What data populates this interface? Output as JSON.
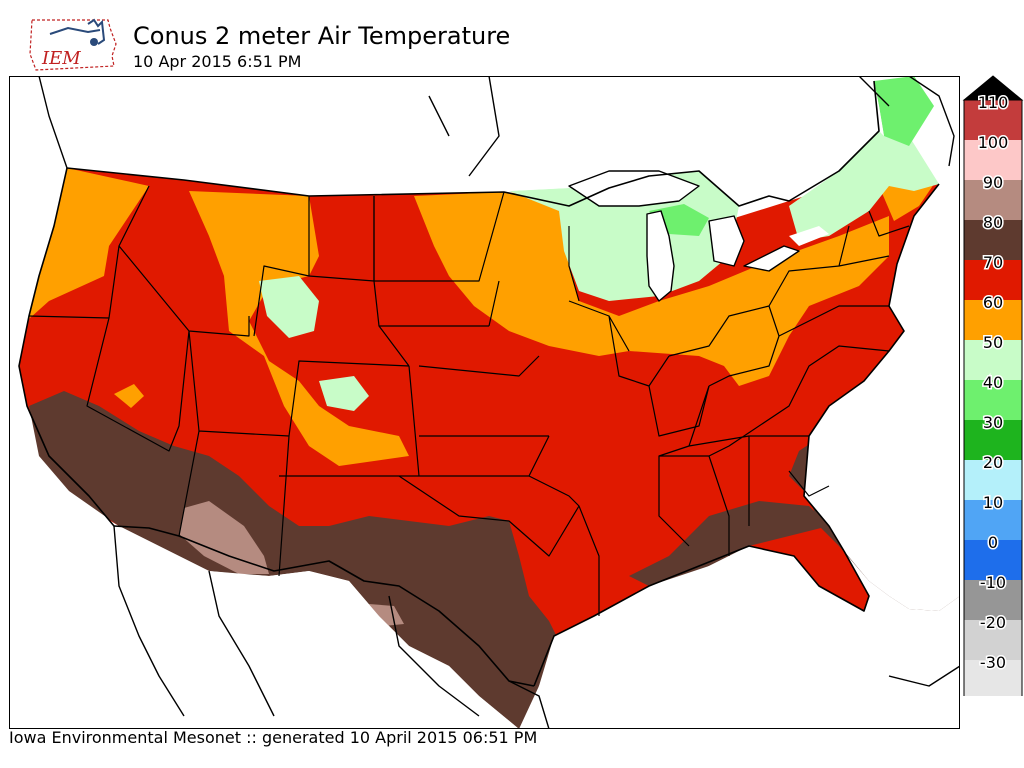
{
  "header": {
    "logo_text": "IEM",
    "title": "Conus 2 meter Air Temperature",
    "subtitle": "10 Apr 2015 6:51 PM"
  },
  "footer": {
    "credit": "Iowa Environmental Mesonet :: generated 10 April 2015 06:51 PM"
  },
  "legend": {
    "levels": [
      {
        "label": "110",
        "color": "#c33c3c"
      },
      {
        "label": "100",
        "color": "#fdc8c8"
      },
      {
        "label": "90",
        "color": "#b58b80"
      },
      {
        "label": "80",
        "color": "#5e3a2f"
      },
      {
        "label": "70",
        "color": "#e01900"
      },
      {
        "label": "60",
        "color": "#ffa000"
      },
      {
        "label": "50",
        "color": "#c8fcc8"
      },
      {
        "label": "40",
        "color": "#6ef06e"
      },
      {
        "label": "30",
        "color": "#1eb41e"
      },
      {
        "label": "20",
        "color": "#b4f0fa"
      },
      {
        "label": "10",
        "color": "#50a5f5"
      },
      {
        "label": "0",
        "color": "#1e6eeb"
      },
      {
        "label": "-10",
        "color": "#969696"
      },
      {
        "label": "-20",
        "color": "#d2d2d2"
      },
      {
        "label": "-30",
        "color": "#e6e6e6"
      }
    ],
    "over_color": "#000000",
    "under_color": "#ffffff"
  },
  "colors": {
    "brown": "#5e3a2f",
    "tan": "#b58b80",
    "red": "#e01900",
    "orange": "#ffa000",
    "pale_green": "#c8fcc8",
    "green": "#6ef06e",
    "water": "#ffffff",
    "outline": "#000000"
  }
}
